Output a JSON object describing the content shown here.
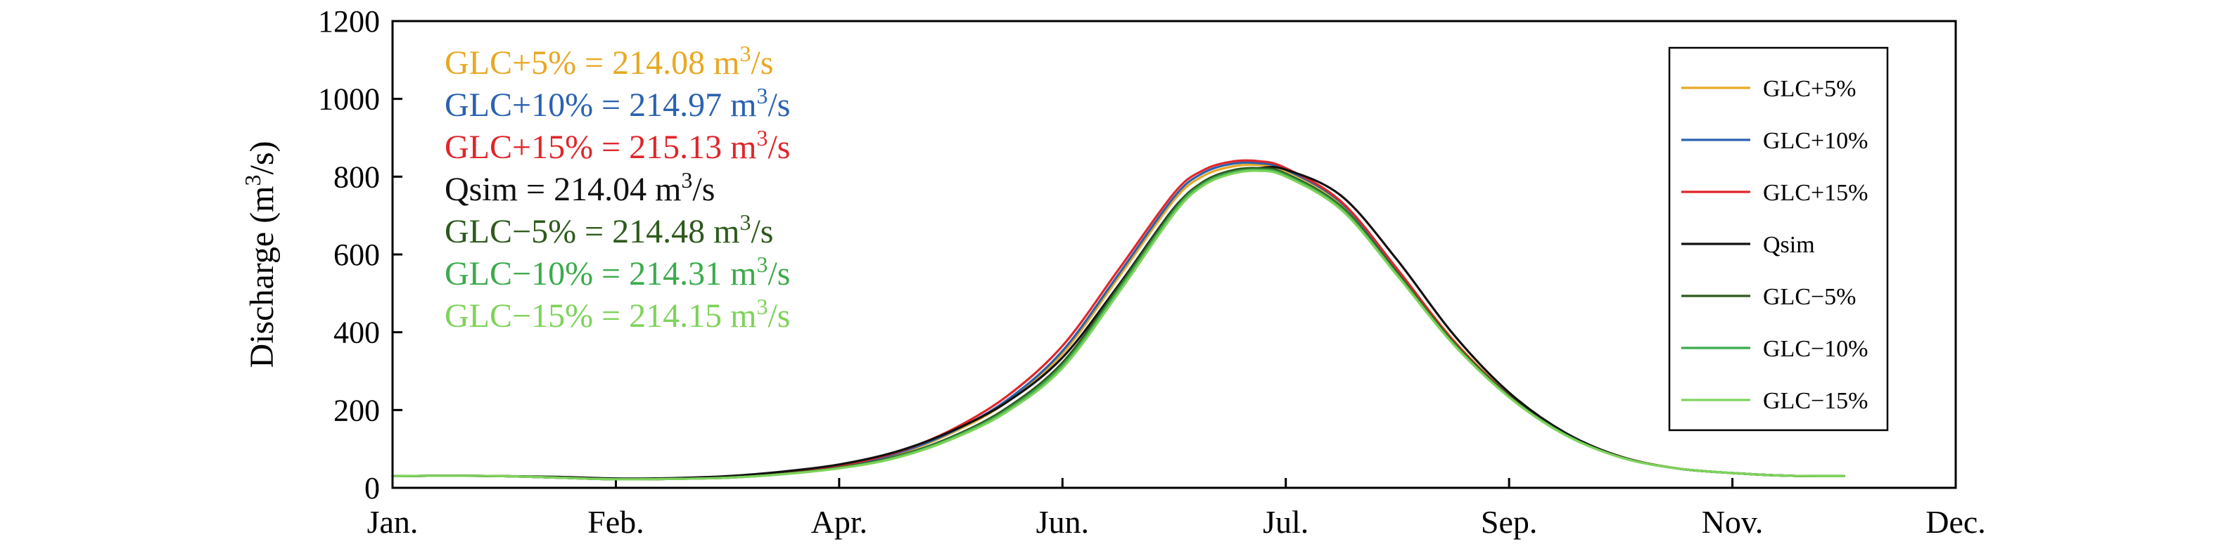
{
  "chart_data": {
    "type": "line",
    "title": "",
    "xlabel": "",
    "ylabel": "Discharge (m³/s)",
    "ylim": [
      0,
      1200
    ],
    "yticks": [
      0,
      200,
      400,
      600,
      800,
      1000,
      1200
    ],
    "xlim": [
      0,
      14
    ],
    "x_ticks": [
      {
        "pos": 0,
        "label": "Jan."
      },
      {
        "pos": 2,
        "label": "Feb."
      },
      {
        "pos": 4,
        "label": "Apr."
      },
      {
        "pos": 6,
        "label": "Jun."
      },
      {
        "pos": 8,
        "label": "Jul."
      },
      {
        "pos": 10,
        "label": "Sep."
      },
      {
        "pos": 12,
        "label": "Nov."
      },
      {
        "pos": 14,
        "label": "Dec."
      }
    ],
    "grid": false,
    "legend_position": "right",
    "annotations": [
      {
        "prefix": "GLC+5% = 214.08 m",
        "sup": "3",
        "suffix": "/s",
        "color": "#e8a822"
      },
      {
        "prefix": "GLC+10% = 214.97 m",
        "sup": "3",
        "suffix": "/s",
        "color": "#2a62b0"
      },
      {
        "prefix": "GLC+15% = 215.13 m",
        "sup": "3",
        "suffix": "/s",
        "color": "#e0262a"
      },
      {
        "prefix": "Qsim =  214.04 m",
        "sup": "3",
        "suffix": "/s",
        "color": "#111111"
      },
      {
        "prefix": "GLC−5% = 214.48 m",
        "sup": "3",
        "suffix": "/s",
        "color": "#2e5a1c"
      },
      {
        "prefix": "GLC−10% = 214.31 m",
        "sup": "3",
        "suffix": "/s",
        "color": "#3cab4c"
      },
      {
        "prefix": "GLC−15% = 214.15 m",
        "sup": "3",
        "suffix": "/s",
        "color": "#7ed35a"
      }
    ],
    "series": [
      {
        "name": "GLC+5%",
        "color": "#e8a822",
        "x": [
          0,
          0.5,
          1,
          1.5,
          2,
          2.5,
          3,
          3.5,
          4,
          4.5,
          5,
          5.5,
          6,
          6.5,
          7,
          7.25,
          7.5,
          7.75,
          8,
          8.5,
          9,
          9.5,
          10,
          10.5,
          11,
          11.5,
          12,
          12.5,
          13
        ],
        "y": [
          30,
          31,
          30,
          26,
          22,
          23,
          27,
          38,
          55,
          85,
          140,
          220,
          345,
          540,
          740,
          800,
          825,
          830,
          815,
          730,
          560,
          380,
          240,
          140,
          80,
          50,
          38,
          31,
          30
        ]
      },
      {
        "name": "GLC+10%",
        "color": "#2a62b0",
        "x": [
          0,
          0.5,
          1,
          1.5,
          2,
          2.5,
          3,
          3.5,
          4,
          4.5,
          5,
          5.5,
          6,
          6.5,
          7,
          7.25,
          7.5,
          7.75,
          8,
          8.5,
          9,
          9.5,
          10,
          10.5,
          11,
          11.5,
          12,
          12.5,
          13
        ],
        "y": [
          30,
          31,
          30,
          26,
          22,
          23,
          27,
          38,
          56,
          87,
          143,
          225,
          352,
          548,
          748,
          808,
          832,
          835,
          818,
          732,
          560,
          378,
          238,
          139,
          79,
          50,
          38,
          31,
          30
        ]
      },
      {
        "name": "GLC+15%",
        "color": "#e0262a",
        "x": [
          0,
          0.5,
          1,
          1.5,
          2,
          2.5,
          3,
          3.5,
          4,
          4.5,
          5,
          5.5,
          6,
          6.5,
          7,
          7.25,
          7.5,
          7.75,
          8,
          8.5,
          9,
          9.5,
          10,
          10.5,
          11,
          11.5,
          12,
          12.5,
          13
        ],
        "y": [
          30,
          31,
          30,
          26,
          22,
          23,
          27,
          39,
          57,
          90,
          148,
          235,
          365,
          560,
          758,
          815,
          838,
          840,
          822,
          735,
          562,
          378,
          237,
          138,
          79,
          50,
          38,
          31,
          30
        ]
      },
      {
        "name": "Qsim",
        "color": "#111111",
        "x": [
          0,
          0.5,
          1,
          1.5,
          2,
          2.5,
          3,
          3.5,
          4,
          4.5,
          5,
          5.5,
          6,
          6.5,
          7,
          7.25,
          7.5,
          7.75,
          8,
          8.5,
          9,
          9.5,
          10,
          10.5,
          11,
          11.5,
          12,
          12.5,
          13
        ],
        "y": [
          30,
          31,
          30,
          28,
          24,
          25,
          30,
          42,
          60,
          92,
          145,
          220,
          335,
          520,
          720,
          780,
          812,
          822,
          818,
          750,
          585,
          395,
          245,
          142,
          80,
          50,
          38,
          31,
          30
        ]
      },
      {
        "name": "GLC−5%",
        "color": "#2e5a1c",
        "x": [
          0,
          0.5,
          1,
          1.5,
          2,
          2.5,
          3,
          3.5,
          4,
          4.5,
          5,
          5.5,
          6,
          6.5,
          7,
          7.25,
          7.5,
          7.75,
          8,
          8.5,
          9,
          9.5,
          10,
          10.5,
          11,
          11.5,
          12,
          12.5,
          13
        ],
        "y": [
          30,
          31,
          30,
          26,
          22,
          23,
          26,
          36,
          52,
          80,
          130,
          205,
          322,
          515,
          718,
          785,
          815,
          822,
          808,
          722,
          552,
          374,
          236,
          138,
          79,
          50,
          38,
          31,
          30
        ]
      },
      {
        "name": "GLC−10%",
        "color": "#3cab4c",
        "x": [
          0,
          0.5,
          1,
          1.5,
          2,
          2.5,
          3,
          3.5,
          4,
          4.5,
          5,
          5.5,
          6,
          6.5,
          7,
          7.25,
          7.5,
          7.75,
          8,
          8.5,
          9,
          9.5,
          10,
          10.5,
          11,
          11.5,
          12,
          12.5,
          13
        ],
        "y": [
          30,
          31,
          30,
          26,
          22,
          23,
          26,
          35,
          51,
          78,
          127,
          200,
          315,
          508,
          712,
          780,
          810,
          818,
          804,
          718,
          548,
          371,
          234,
          137,
          78,
          50,
          38,
          31,
          30
        ]
      },
      {
        "name": "GLC−15%",
        "color": "#7ed35a",
        "x": [
          0,
          0.5,
          1,
          1.5,
          2,
          2.5,
          3,
          3.5,
          4,
          4.5,
          5,
          5.5,
          6,
          6.5,
          7,
          7.25,
          7.5,
          7.75,
          8,
          8.5,
          9,
          9.5,
          10,
          10.5,
          11,
          11.5,
          12,
          12.5,
          13
        ],
        "y": [
          30,
          31,
          30,
          26,
          22,
          23,
          26,
          35,
          50,
          76,
          124,
          195,
          308,
          500,
          705,
          775,
          806,
          815,
          800,
          714,
          545,
          369,
          233,
          136,
          78,
          50,
          38,
          31,
          30
        ]
      }
    ]
  }
}
